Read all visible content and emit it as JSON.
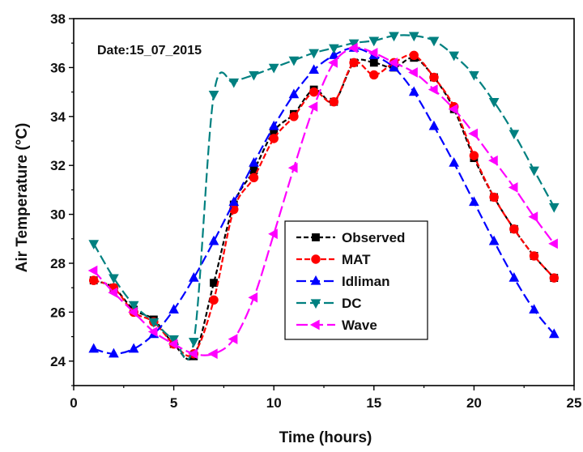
{
  "chart_data": {
    "type": "line",
    "title": "",
    "annotation": "Date:15_07_2015",
    "xlabel": "Time (hours)",
    "ylabel": "Air Temperature (°C)",
    "xlim": [
      0,
      25
    ],
    "ylim": [
      23,
      38
    ],
    "xticks": [
      0,
      5,
      10,
      15,
      20,
      25
    ],
    "yticks": [
      24,
      26,
      28,
      30,
      32,
      34,
      36,
      38
    ],
    "grid": false,
    "legend_position": "center",
    "series": [
      {
        "name": "Observed",
        "color": "#000000",
        "marker": "square",
        "dash": "6,3",
        "x": [
          1,
          2,
          3,
          4,
          5,
          6,
          7,
          8,
          9,
          10,
          11,
          12,
          13,
          14,
          15,
          16,
          17,
          18,
          19,
          20,
          21,
          22,
          23,
          24
        ],
        "y": [
          27.3,
          27.0,
          26.1,
          25.7,
          24.7,
          24.2,
          27.2,
          30.4,
          31.8,
          33.4,
          34.1,
          35.1,
          34.6,
          36.2,
          36.2,
          36.0,
          36.4,
          35.6,
          34.3,
          32.3,
          30.7,
          29.4,
          28.3,
          27.4
        ]
      },
      {
        "name": "MAT",
        "color": "#ff0000",
        "marker": "circle",
        "dash": "7,3",
        "x": [
          1,
          2,
          3,
          4,
          5,
          6,
          7,
          8,
          9,
          10,
          11,
          12,
          13,
          14,
          15,
          16,
          17,
          18,
          19,
          20,
          21,
          22,
          23,
          24
        ],
        "y": [
          27.3,
          27.0,
          26.0,
          25.6,
          24.7,
          24.3,
          26.5,
          30.2,
          31.5,
          33.1,
          34.0,
          35.0,
          34.6,
          36.2,
          35.7,
          36.2,
          36.5,
          35.6,
          34.4,
          32.4,
          30.7,
          29.4,
          28.3,
          27.4
        ]
      },
      {
        "name": "Idliman",
        "color": "#0000ff",
        "marker": "triangle-up",
        "dash": "12,5",
        "x": [
          1,
          2,
          3,
          4,
          5,
          6,
          7,
          8,
          9,
          10,
          11,
          12,
          13,
          14,
          15,
          16,
          17,
          18,
          19,
          20,
          21,
          22,
          23,
          24
        ],
        "y": [
          24.5,
          24.3,
          24.5,
          25.1,
          26.1,
          27.4,
          28.9,
          30.5,
          32.1,
          33.6,
          34.9,
          35.9,
          36.5,
          36.8,
          36.5,
          36.0,
          35.0,
          33.6,
          32.1,
          30.5,
          28.9,
          27.4,
          26.1,
          25.1
        ]
      },
      {
        "name": "DC",
        "color": "#008080",
        "marker": "triangle-down",
        "dash": "12,5",
        "x": [
          1,
          2,
          3,
          4,
          5,
          6,
          7,
          8,
          9,
          10,
          11,
          12,
          13,
          14,
          15,
          16,
          17,
          18,
          19,
          20,
          21,
          22,
          23,
          24
        ],
        "y": [
          28.8,
          27.4,
          26.3,
          25.6,
          24.9,
          24.8,
          34.9,
          35.4,
          35.7,
          36.0,
          36.3,
          36.6,
          36.8,
          37.0,
          37.1,
          37.3,
          37.3,
          37.1,
          36.5,
          35.7,
          34.6,
          33.3,
          31.8,
          30.3
        ]
      },
      {
        "name": "Wave",
        "color": "#ff00ff",
        "marker": "triangle-left",
        "dash": "14,5",
        "x": [
          1,
          2,
          3,
          4,
          5,
          6,
          7,
          8,
          9,
          10,
          11,
          12,
          13,
          14,
          15,
          16,
          17,
          18,
          19,
          20,
          21,
          22,
          23,
          24
        ],
        "y": [
          27.7,
          26.8,
          26.0,
          25.2,
          24.7,
          24.3,
          24.3,
          24.9,
          26.6,
          29.2,
          31.9,
          34.4,
          36.2,
          36.8,
          36.6,
          36.2,
          35.8,
          35.1,
          34.3,
          33.3,
          32.2,
          31.1,
          29.9,
          28.8
        ]
      }
    ]
  }
}
